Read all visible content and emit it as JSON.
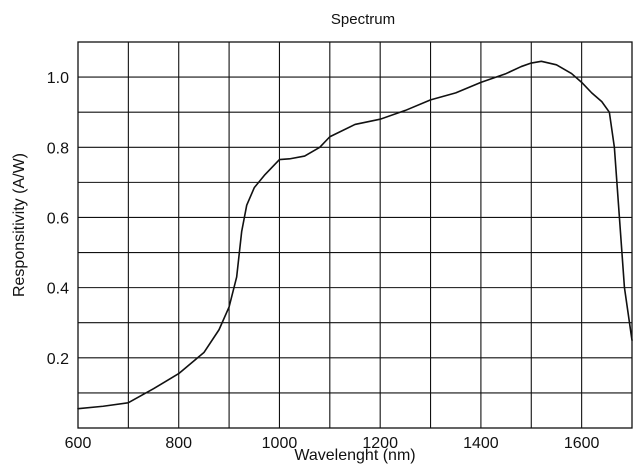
{
  "chart_data": {
    "type": "line",
    "title": "Spectrum",
    "xlabel": "Wavelenght  (nm)",
    "ylabel": "Responsitivity (A/W)",
    "xlim": [
      600,
      1700
    ],
    "ylim": [
      0.0,
      1.1
    ],
    "x_ticks": [
      600,
      800,
      1000,
      1200,
      1400,
      1600
    ],
    "x_tick_labels": [
      "600",
      "800",
      "1000",
      "1200",
      "1400",
      "1600"
    ],
    "y_ticks": [
      0.2,
      0.4,
      0.6,
      0.8,
      1.0
    ],
    "y_tick_labels": [
      "0.2",
      "0.4",
      "0.6",
      "0.8",
      "1.0"
    ],
    "grid": true,
    "line_color": "#111111",
    "series": [
      {
        "x": [
          600,
          650,
          700,
          750,
          800,
          850,
          880,
          900,
          915,
          925,
          935,
          950,
          970,
          990,
          1000,
          1020,
          1050,
          1080,
          1100,
          1150,
          1200,
          1250,
          1300,
          1350,
          1400,
          1450,
          1480,
          1500,
          1520,
          1550,
          1580,
          1600,
          1620,
          1640,
          1655,
          1665,
          1675,
          1685,
          1700
        ],
        "y": [
          0.055,
          0.062,
          0.072,
          0.112,
          0.155,
          0.215,
          0.28,
          0.345,
          0.43,
          0.56,
          0.635,
          0.685,
          0.72,
          0.75,
          0.765,
          0.767,
          0.775,
          0.8,
          0.83,
          0.865,
          0.88,
          0.905,
          0.935,
          0.955,
          0.985,
          1.01,
          1.03,
          1.04,
          1.045,
          1.035,
          1.01,
          0.985,
          0.955,
          0.93,
          0.9,
          0.8,
          0.6,
          0.4,
          0.25
        ]
      }
    ]
  }
}
